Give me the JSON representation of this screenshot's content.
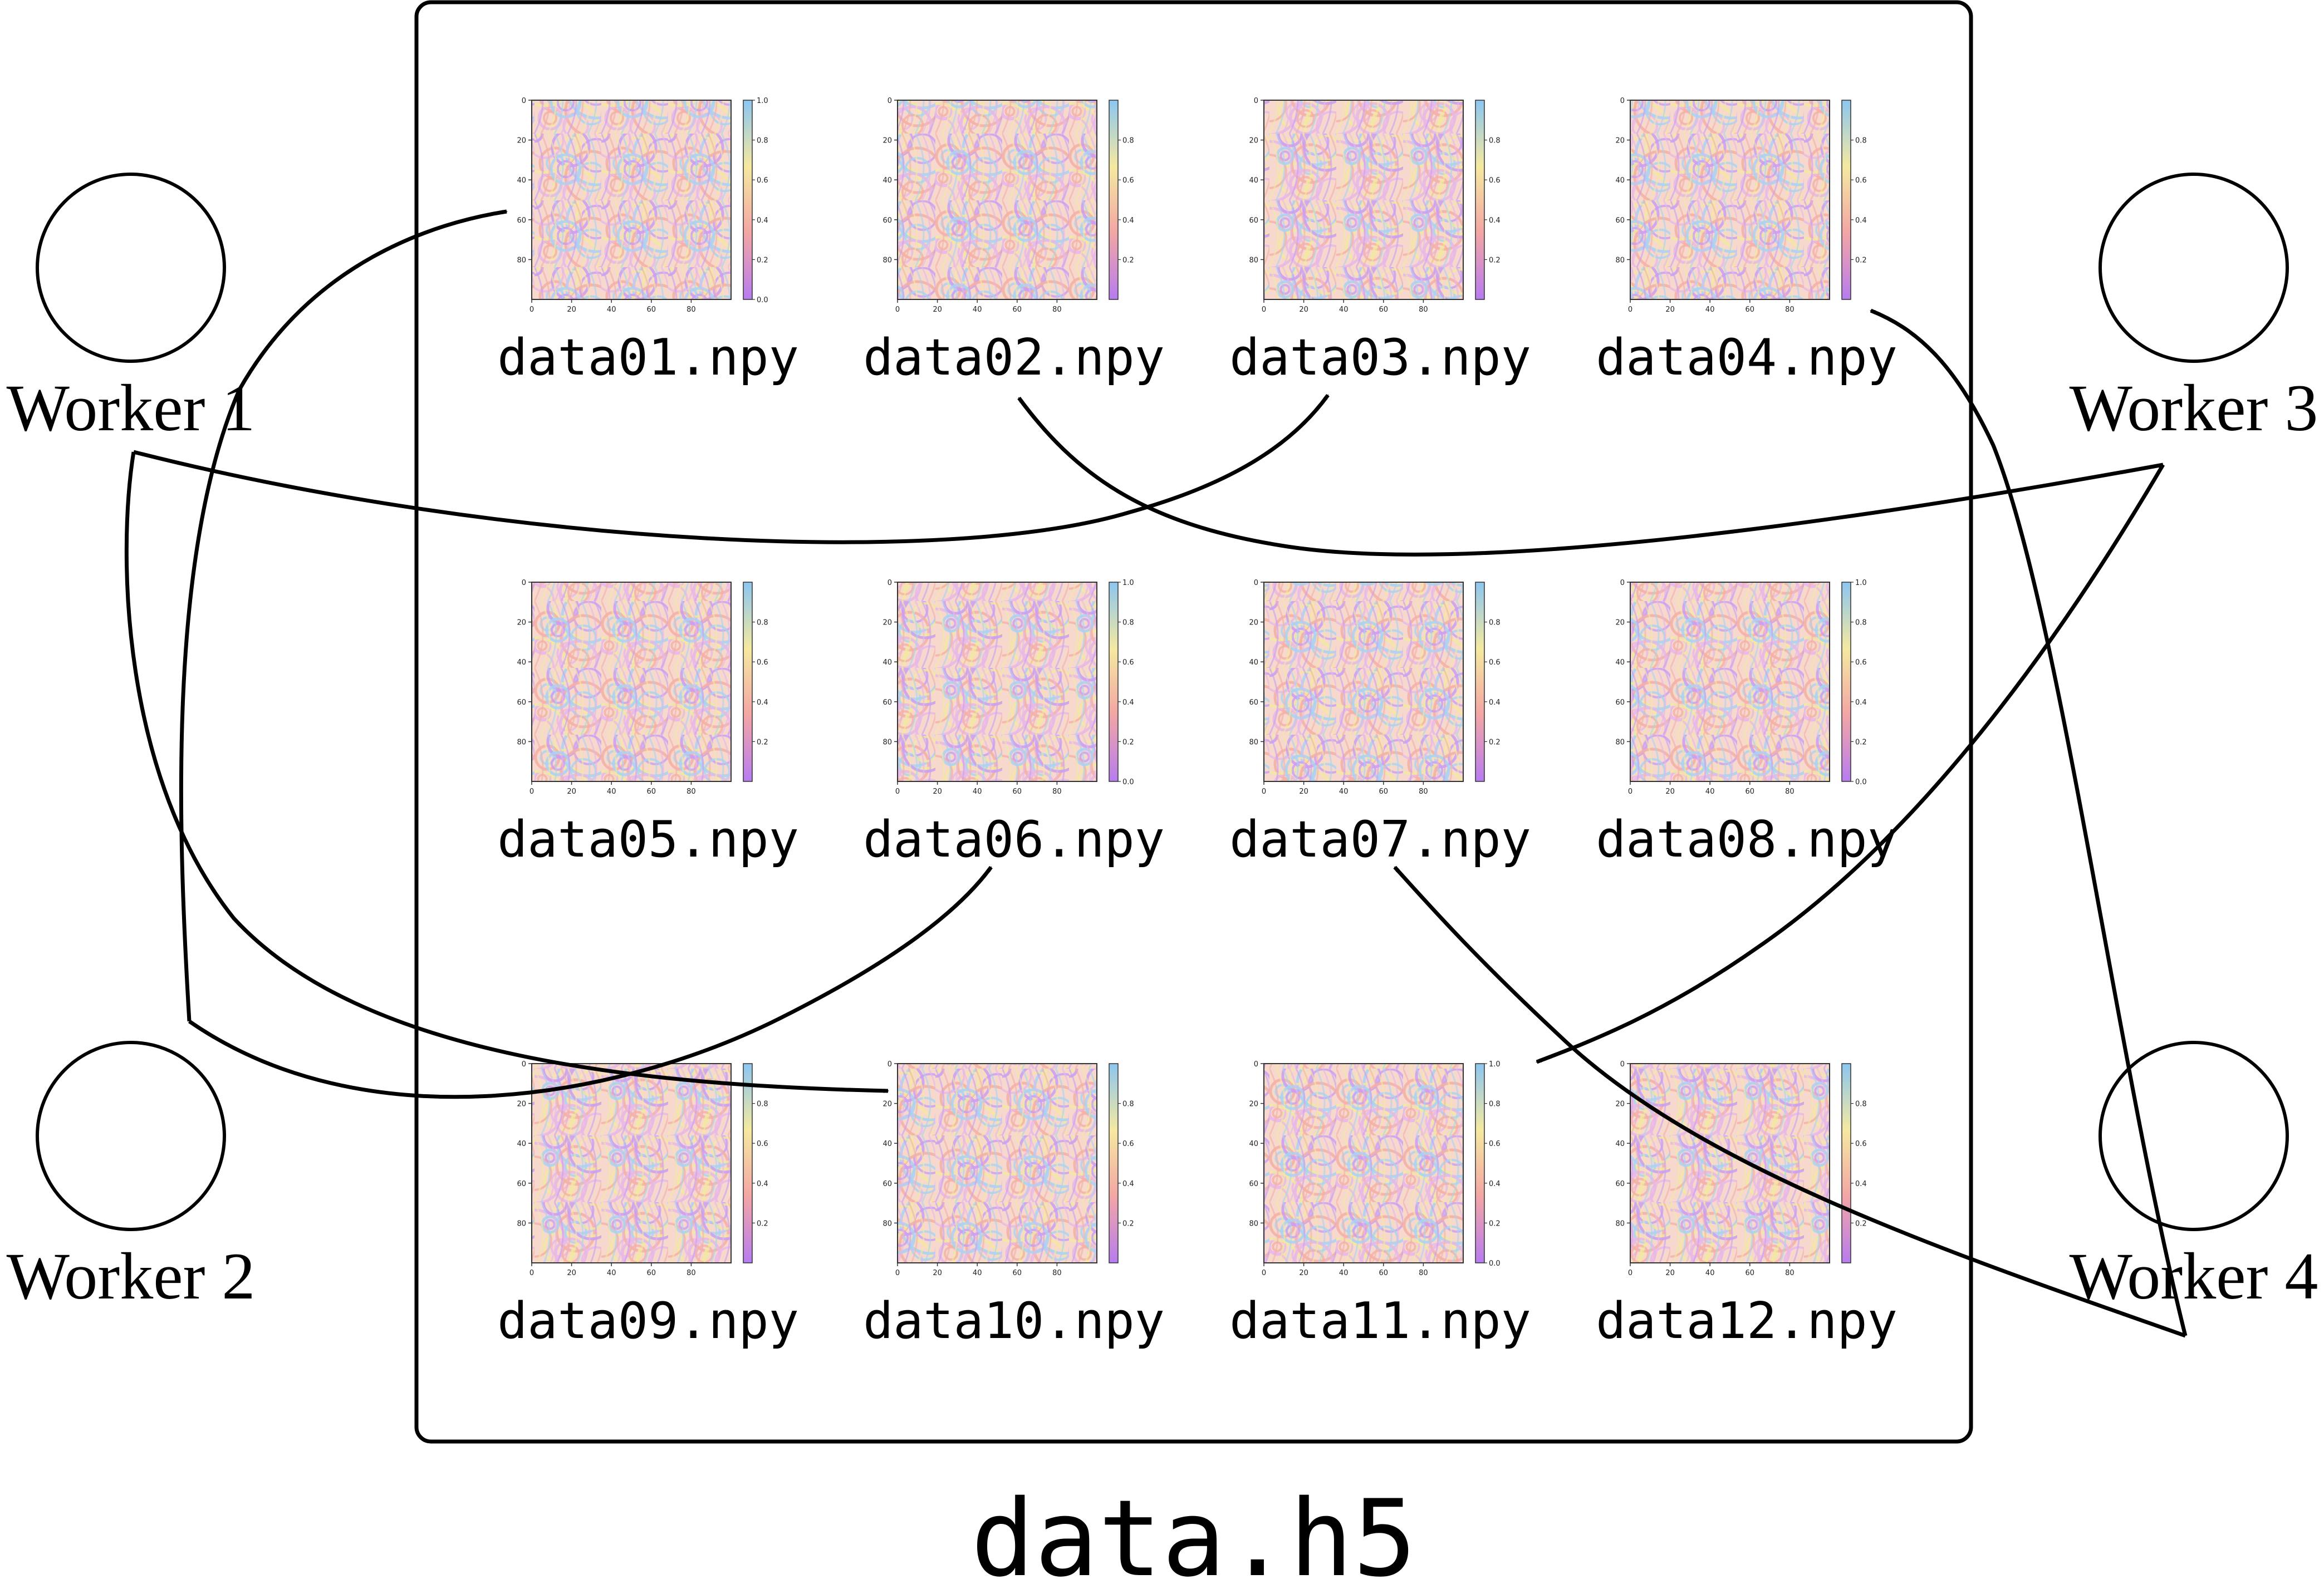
{
  "archive": {
    "label": "data.h5"
  },
  "workers": [
    {
      "id": 1,
      "label": "Worker 1"
    },
    {
      "id": 2,
      "label": "Worker 2"
    },
    {
      "id": 3,
      "label": "Worker 3"
    },
    {
      "id": 4,
      "label": "Worker 4"
    }
  ],
  "files": [
    {
      "label": "data01.npy",
      "cbar_ticks": [
        "0.0",
        "0.2",
        "0.4",
        "0.6",
        "0.8",
        "1.0"
      ]
    },
    {
      "label": "data02.npy",
      "cbar_ticks": [
        "0.2",
        "0.4",
        "0.6",
        "0.8"
      ]
    },
    {
      "label": "data03.npy",
      "cbar_ticks": [
        "0.2",
        "0.4",
        "0.6",
        "0.8"
      ]
    },
    {
      "label": "data04.npy",
      "cbar_ticks": [
        "0.2",
        "0.4",
        "0.6",
        "0.8"
      ]
    },
    {
      "label": "data05.npy",
      "cbar_ticks": [
        "0.2",
        "0.4",
        "0.6",
        "0.8"
      ]
    },
    {
      "label": "data06.npy",
      "cbar_ticks": [
        "0.0",
        "0.2",
        "0.4",
        "0.6",
        "0.8",
        "1.0"
      ]
    },
    {
      "label": "data07.npy",
      "cbar_ticks": [
        "0.2",
        "0.4",
        "0.6",
        "0.8"
      ]
    },
    {
      "label": "data08.npy",
      "cbar_ticks": [
        "0.0",
        "0.2",
        "0.4",
        "0.6",
        "0.8",
        "1.0"
      ]
    },
    {
      "label": "data09.npy",
      "cbar_ticks": [
        "0.2",
        "0.4",
        "0.6",
        "0.8"
      ]
    },
    {
      "label": "data10.npy",
      "cbar_ticks": [
        "0.2",
        "0.4",
        "0.6",
        "0.8"
      ]
    },
    {
      "label": "data11.npy",
      "cbar_ticks": [
        "0.0",
        "0.2",
        "0.4",
        "0.6",
        "0.8",
        "1.0"
      ]
    },
    {
      "label": "data12.npy",
      "cbar_ticks": [
        "0.2",
        "0.4",
        "0.6",
        "0.8"
      ]
    }
  ],
  "axis_ticks": {
    "x": [
      "0",
      "20",
      "40",
      "60",
      "80"
    ],
    "y": [
      "0",
      "20",
      "40",
      "60",
      "80"
    ]
  },
  "assignments": [
    {
      "worker": 1,
      "files": [
        "data03.npy",
        "data10.npy"
      ]
    },
    {
      "worker": 2,
      "files": [
        "data01.npy",
        "data06.npy"
      ]
    },
    {
      "worker": 3,
      "files": [
        "data02.npy",
        "data11.npy"
      ]
    },
    {
      "worker": 4,
      "files": [
        "data04.npy",
        "data07.npy"
      ]
    }
  ],
  "colors": {
    "stroke": "#000000",
    "background": "#ffffff"
  },
  "colormap": [
    "#b77cf0",
    "#f3a5a5",
    "#f5e9a0",
    "#8cc6f0"
  ]
}
